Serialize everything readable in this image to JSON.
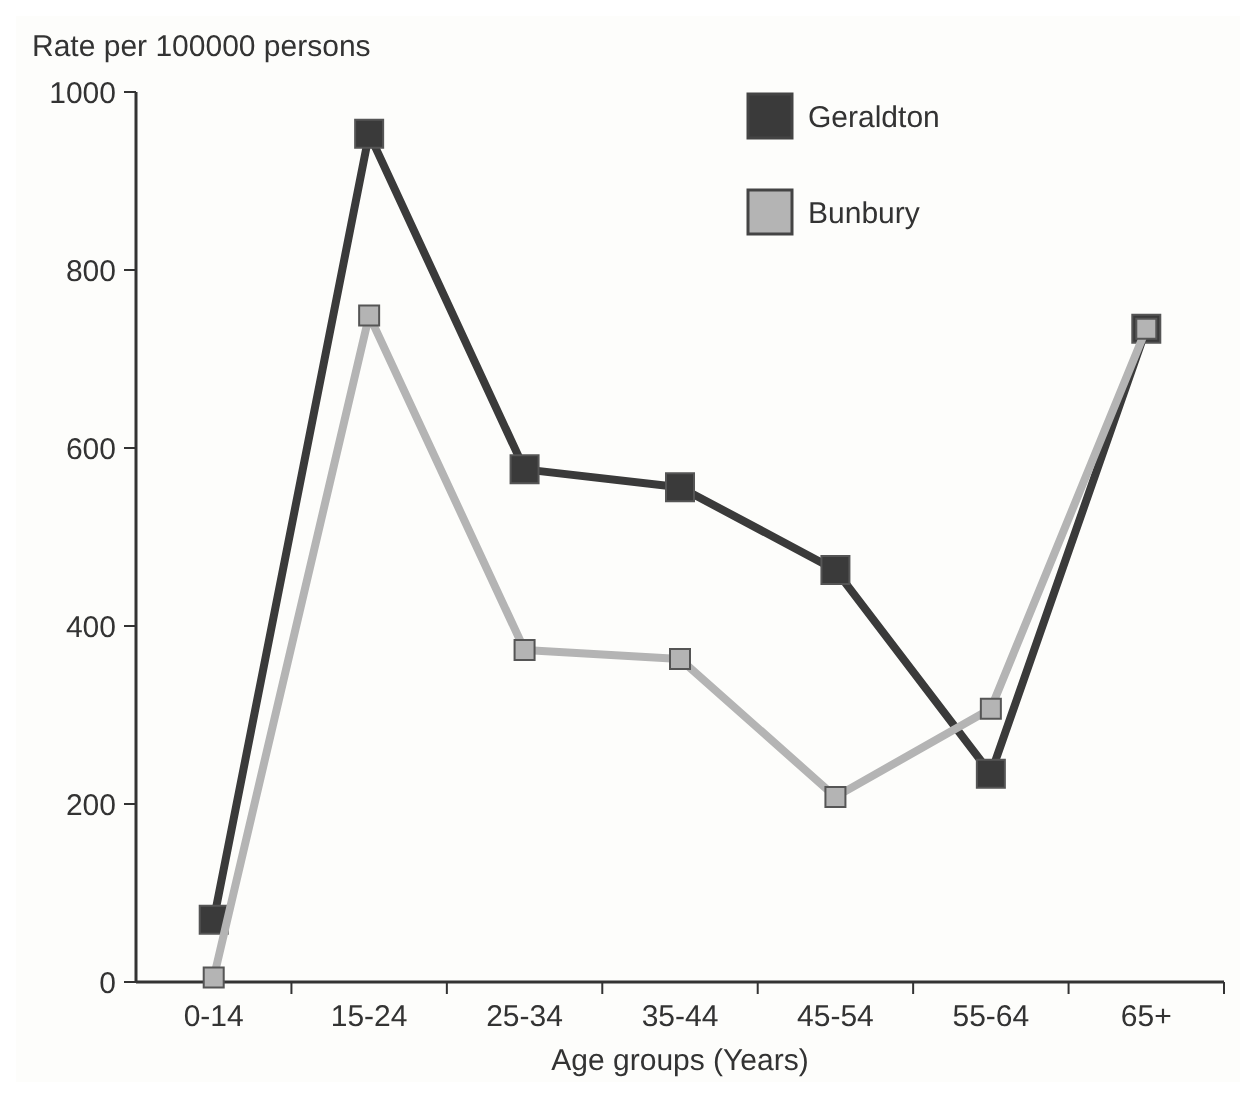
{
  "chart_data": {
    "type": "line",
    "ylabel": "Rate per 100000 persons",
    "xlabel": "Age groups (Years)",
    "categories": [
      "0-14",
      "15-24",
      "25-34",
      "35-44",
      "45-54",
      "55-64",
      "65+"
    ],
    "ylim": [
      0,
      1000
    ],
    "yticks": [
      0,
      200,
      400,
      600,
      800,
      1000
    ],
    "marker": "square",
    "legend": "top right",
    "grid": false,
    "series": [
      {
        "name": "Geraldton",
        "color": "#3a3a3a",
        "values": [
          70,
          953,
          576,
          556,
          463,
          234,
          734
        ]
      },
      {
        "name": "Bunbury",
        "color": "#b4b4b4",
        "values": [
          5,
          749,
          373,
          363,
          208,
          307,
          734
        ]
      }
    ]
  }
}
